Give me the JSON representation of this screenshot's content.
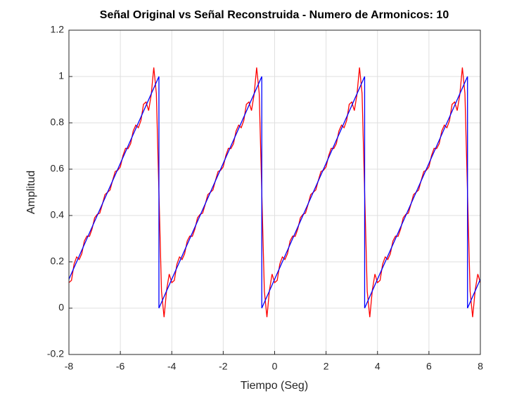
{
  "chart_data": {
    "type": "line",
    "title": "Señal Original vs Señal Reconstruida - Numero de Armonicos: 10",
    "xlabel": "Tiempo (Seg)",
    "ylabel": "Amplitud",
    "xlim": [
      -8,
      8
    ],
    "xticks": [
      -8,
      -6,
      -4,
      -2,
      0,
      2,
      4,
      6,
      8
    ],
    "ylim": [
      -0.2,
      1.2
    ],
    "yticks": [
      -0.2,
      0,
      0.2,
      0.4,
      0.6,
      0.8,
      1,
      1.2
    ],
    "grid": true,
    "series": [
      {
        "color": "#ff0000",
        "x": [
          -8,
          -7.9,
          -7.8,
          -7.7,
          -7.6,
          -7.5,
          -7.4,
          -7.3,
          -7.2,
          -7.1,
          -7,
          -6.9,
          -6.8,
          -6.7,
          -6.6,
          -6.5,
          -6.4,
          -6.3,
          -6.2,
          -6.1,
          -6,
          -5.9,
          -5.8,
          -5.7,
          -5.6,
          -5.5,
          -5.4,
          -5.3,
          -5.2,
          -5.1,
          -5,
          -4.9,
          -4.8,
          -4.7,
          -4.6,
          -4.5,
          -4.4,
          -4.3,
          -4.2,
          -4.1,
          -4,
          -3.9,
          -3.8,
          -3.7,
          -3.6,
          -3.5,
          -3.4,
          -3.3,
          -3.2,
          -3.1,
          -3,
          -2.9,
          -2.8,
          -2.7,
          -2.6,
          -2.5,
          -2.4,
          -2.3,
          -2.2,
          -2.1,
          -2,
          -1.9,
          -1.8,
          -1.7,
          -1.6,
          -1.5,
          -1.4,
          -1.3,
          -1.2,
          -1.1,
          -1,
          -0.9,
          -0.8,
          -0.7,
          -0.6,
          -0.5,
          -0.4,
          -0.3,
          -0.2,
          -0.1,
          0,
          0.1,
          0.2,
          0.3,
          0.4,
          0.5,
          0.6,
          0.7,
          0.8,
          0.9,
          1,
          1.1,
          1.2,
          1.3,
          1.4,
          1.5,
          1.6,
          1.7,
          1.8,
          1.9,
          2,
          2.1,
          2.2,
          2.3,
          2.4,
          2.5,
          2.6,
          2.7,
          2.8,
          2.9,
          3,
          3.1,
          3.2,
          3.3,
          3.4,
          3.5,
          3.6,
          3.7,
          3.8,
          3.9,
          4,
          4.1,
          4.2,
          4.3,
          4.4,
          4.5,
          4.6,
          4.7,
          4.8,
          4.9,
          5,
          5.1,
          5.2,
          5.3,
          5.4,
          5.5,
          5.6,
          5.7,
          5.8,
          5.9,
          6,
          6.1,
          6.2,
          6.3,
          6.4,
          6.5,
          6.6,
          6.7,
          6.8,
          6.9,
          7,
          7.1,
          7.2,
          7.3,
          7.4,
          7.5,
          7.6,
          7.7,
          7.8,
          7.9,
          8
        ],
        "values": [
          0.11,
          0.12,
          0.19,
          0.221,
          0.21,
          0.235,
          0.29,
          0.311,
          0.31,
          0.342,
          0.39,
          0.405,
          0.41,
          0.448,
          0.49,
          0.5,
          0.51,
          0.552,
          0.59,
          0.595,
          0.61,
          0.658,
          0.69,
          0.689,
          0.71,
          0.765,
          0.79,
          0.779,
          0.81,
          0.88,
          0.89,
          0.853,
          0.921,
          1.039,
          0.927,
          0.5,
          0.073,
          -0.039,
          0.079,
          0.147,
          0.11,
          0.12,
          0.19,
          0.221,
          0.21,
          0.235,
          0.29,
          0.311,
          0.31,
          0.342,
          0.39,
          0.405,
          0.41,
          0.448,
          0.49,
          0.5,
          0.51,
          0.552,
          0.59,
          0.595,
          0.61,
          0.658,
          0.69,
          0.689,
          0.71,
          0.765,
          0.79,
          0.779,
          0.81,
          0.88,
          0.89,
          0.853,
          0.921,
          1.039,
          0.927,
          0.5,
          0.073,
          -0.039,
          0.079,
          0.147,
          0.11,
          0.12,
          0.19,
          0.221,
          0.21,
          0.235,
          0.29,
          0.311,
          0.31,
          0.342,
          0.39,
          0.405,
          0.41,
          0.448,
          0.49,
          0.5,
          0.51,
          0.552,
          0.59,
          0.595,
          0.61,
          0.658,
          0.69,
          0.689,
          0.71,
          0.765,
          0.79,
          0.779,
          0.81,
          0.88,
          0.89,
          0.853,
          0.921,
          1.039,
          0.927,
          0.5,
          0.073,
          -0.039,
          0.079,
          0.147,
          0.11,
          0.12,
          0.19,
          0.221,
          0.21,
          0.235,
          0.29,
          0.311,
          0.31,
          0.342,
          0.39,
          0.405,
          0.41,
          0.448,
          0.49,
          0.5,
          0.51,
          0.552,
          0.59,
          0.595,
          0.61,
          0.658,
          0.69,
          0.689,
          0.71,
          0.765,
          0.79,
          0.779,
          0.81,
          0.88,
          0.89,
          0.853,
          0.921,
          1.039,
          0.927,
          0.5,
          0.073,
          -0.039,
          0.079,
          0.147,
          0.11
        ]
      },
      {
        "color": "#0000ff",
        "x": [
          -8,
          -4.5,
          -4.5,
          -0.5,
          -0.5,
          3.5,
          3.5,
          7.5,
          7.5,
          8
        ],
        "values": [
          0.125,
          1,
          0,
          1,
          0,
          1,
          0,
          1,
          0,
          0.125
        ]
      }
    ]
  }
}
